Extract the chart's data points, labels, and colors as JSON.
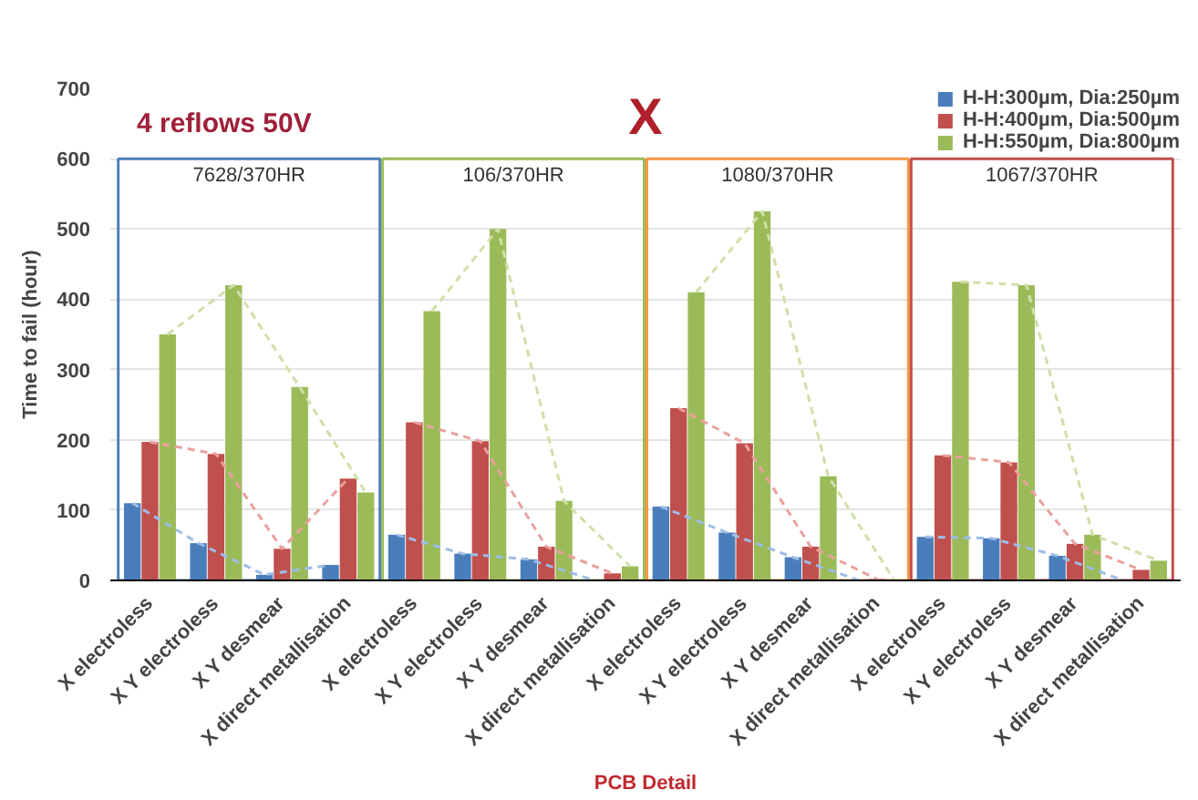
{
  "chart_data": {
    "type": "bar",
    "xlabel": "PCB Detail",
    "ylabel": "Time to fail (hour)",
    "categories": [
      "X electroless",
      "X Y electroless",
      "X Y desmear",
      "X direct metallisation",
      "X electroless",
      "X Y electroless",
      "X Y desmear",
      "X direct metallisation",
      "X electroless",
      "X Y electroless",
      "X Y desmear",
      "X direct metallisation",
      "X electroless",
      "X Y electroless",
      "X Y desmear",
      "X direct metallisation"
    ],
    "series": [
      {
        "name": "H-H:300µm, Dia:250µm",
        "color": "#4a7ebb",
        "values": [
          110,
          53,
          8,
          22,
          65,
          38,
          30,
          0,
          105,
          68,
          33,
          0,
          62,
          60,
          35,
          0
        ]
      },
      {
        "name": "H-H:400µm, Dia:500µm",
        "color": "#c0504d",
        "values": [
          197,
          180,
          45,
          145,
          225,
          198,
          48,
          10,
          245,
          195,
          48,
          2,
          178,
          168,
          52,
          15
        ]
      },
      {
        "name": "H-H:550µm, Dia:800µm",
        "color": "#9bbb59",
        "values": [
          350,
          420,
          275,
          125,
          383,
          500,
          113,
          20,
          410,
          525,
          148,
          0,
          425,
          420,
          65,
          28
        ]
      },
      {
        "type": "line",
        "line_style": "dashed",
        "color": "#9dbde8",
        "values": [
          110,
          53,
          8,
          22,
          65,
          38,
          30,
          0,
          105,
          68,
          33,
          0,
          62,
          60,
          35,
          0
        ]
      },
      {
        "type": "line",
        "line_style": "dashed",
        "color": "#eaa19e",
        "values": [
          197,
          180,
          45,
          145,
          225,
          198,
          48,
          10,
          245,
          195,
          48,
          2,
          178,
          168,
          52,
          15
        ]
      },
      {
        "type": "line",
        "line_style": "dashed",
        "color": "#cfe0a8",
        "values": [
          350,
          420,
          275,
          125,
          383,
          500,
          113,
          20,
          410,
          525,
          148,
          0,
          425,
          420,
          65,
          28
        ]
      }
    ],
    "annotations": [
      "4 reflows 50V",
      "X",
      "7628/370HR",
      "106/370HR",
      "1080/370HR",
      "1067/370HR"
    ],
    "ylim": [
      0,
      700
    ],
    "yticks": [
      0,
      100,
      200,
      300,
      400,
      500,
      600,
      700
    ],
    "grid": "y",
    "legend": "top right"
  }
}
